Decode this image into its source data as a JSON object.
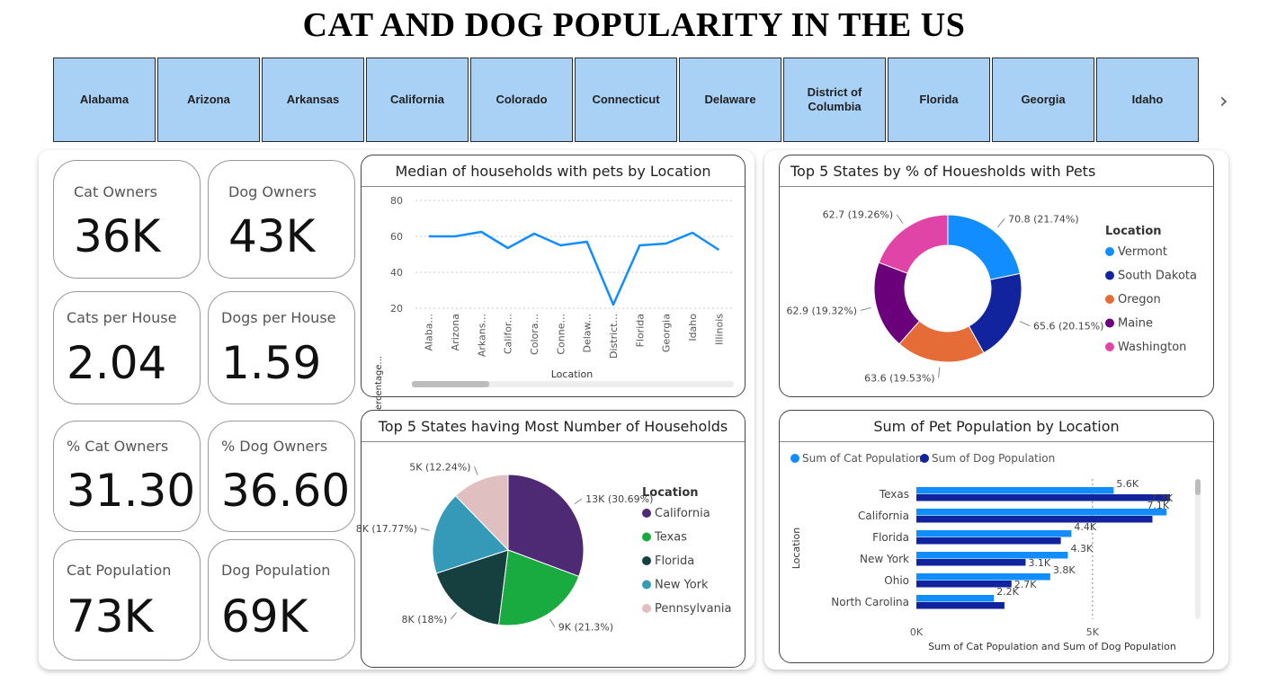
{
  "title": "CAT AND DOG POPULARITY IN THE US",
  "slicer": {
    "items": [
      "Alabama",
      "Arizona",
      "Arkansas",
      "California",
      "Colorado",
      "Connecticut",
      "Delaware",
      "District of Columbia",
      "Florida",
      "Georgia",
      "Idaho"
    ],
    "next_icon": "chevron-right-icon"
  },
  "kpis": {
    "cat_owners": {
      "label": "Cat Owners",
      "value": "36K"
    },
    "dog_owners": {
      "label": "Dog Owners",
      "value": "43K"
    },
    "cats_per_house": {
      "label": "Cats per House",
      "value": "2.04"
    },
    "dogs_per_house": {
      "label": "Dogs per House",
      "value": "1.59"
    },
    "pct_cat_owners": {
      "label": "% Cat Owners",
      "value": "31.30"
    },
    "pct_dog_owners": {
      "label": "% Dog Owners",
      "value": "36.60"
    },
    "cat_population": {
      "label": "Cat Population",
      "value": "73K"
    },
    "dog_population": {
      "label": "Dog Population",
      "value": "69K"
    }
  },
  "chart_data": [
    {
      "id": "median_line",
      "type": "line",
      "title": "Median of households with pets by Location",
      "xlabel": "Location",
      "ylabel": "Median of Percentage...",
      "categories": [
        "Alaba...",
        "Arizona",
        "Arkans...",
        "Califor...",
        "Colora...",
        "Conne...",
        "Delaw...",
        "District...",
        "Florida",
        "Georgia",
        "Idaho",
        "Illinois"
      ],
      "values": [
        60,
        60,
        62.5,
        53.5,
        61.5,
        55,
        57,
        22,
        55,
        56,
        62,
        52.5
      ],
      "yticks": [
        20,
        40,
        60,
        80
      ],
      "ylim": [
        20,
        80
      ],
      "color": "#118dff",
      "grid": true
    },
    {
      "id": "top5_pets_donut",
      "type": "pie",
      "subtype": "donut",
      "title": "Top 5 States by % of Houesholds with Pets",
      "legend_title": "Location",
      "legend_position": "right",
      "categories": [
        "Vermont",
        "South Dakota",
        "Oregon",
        "Maine",
        "Washington"
      ],
      "values": [
        70.8,
        65.6,
        63.6,
        62.9,
        62.7
      ],
      "labels": [
        "70.8 (21.74%)",
        "65.6 (20.15%)",
        "63.6 (19.53%)",
        "62.9 (19.32%)",
        "62.7 (19.26%)"
      ],
      "colors": [
        "#118dff",
        "#12239e",
        "#e66c37",
        "#6b007b",
        "#e044a7"
      ]
    },
    {
      "id": "top5_households_pie",
      "type": "pie",
      "title": "Top 5 States having Most Number of Households",
      "legend_title": "Location",
      "legend_position": "right",
      "categories": [
        "California",
        "Texas",
        "Florida",
        "New York",
        "Pennsylvania"
      ],
      "values": [
        30.69,
        21.3,
        18,
        17.77,
        12.24
      ],
      "labels": [
        "13K (30.69%)",
        "9K (21.3%)",
        "8K (18%)",
        "8K (17.77%)",
        "5K (12.24%)"
      ],
      "colors": [
        "#4e2a74",
        "#1aab40",
        "#15403f",
        "#3599b8",
        "#dfbfbf"
      ]
    },
    {
      "id": "pet_population_bar",
      "type": "bar",
      "orientation": "horizontal",
      "title": "Sum of Pet Population by Location",
      "xlabel": "Sum of Cat Population and Sum of Dog Population",
      "ylabel": "Location",
      "categories": [
        "Texas",
        "California",
        "Florida",
        "New York",
        "Ohio",
        "North Carolina"
      ],
      "series": [
        {
          "name": "Sum of Cat Population",
          "values": [
            5600,
            7100,
            4400,
            4300,
            3800,
            2200
          ],
          "labels": [
            "5.6K",
            "7.1K",
            "4.4K",
            "4.3K",
            "3.8K",
            "2.2K"
          ],
          "color": "#118dff"
        },
        {
          "name": "Sum of Dog Population",
          "values": [
            7200,
            6700,
            4100,
            3100,
            2700,
            2500
          ],
          "labels": [
            "7.2K",
            "",
            "",
            "3.1K",
            "2.7K",
            ""
          ],
          "color": "#12239e"
        }
      ],
      "xticks": [
        0,
        5000
      ],
      "xtick_labels": [
        "0K",
        "5K"
      ],
      "xlim": [
        0,
        7300
      ],
      "legend_position": "top-left"
    }
  ]
}
